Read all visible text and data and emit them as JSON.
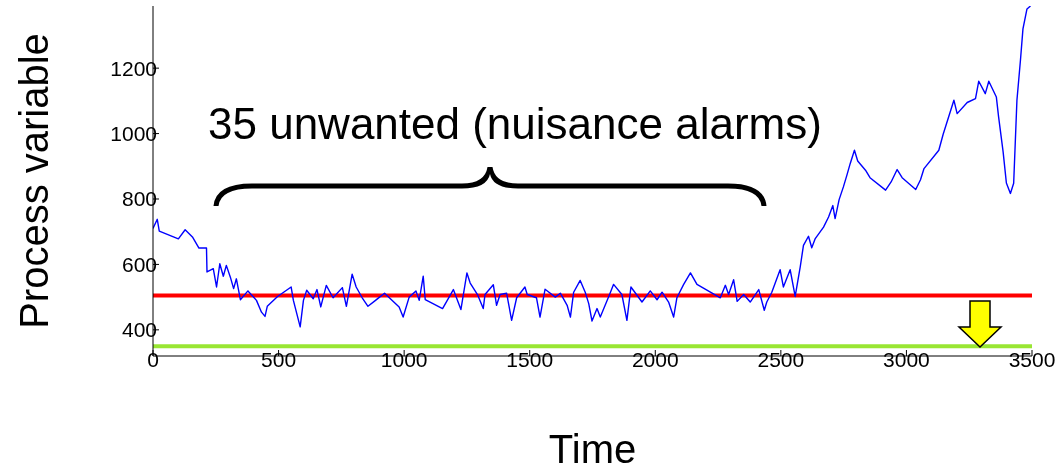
{
  "chart_data": {
    "type": "line",
    "xlabel": "Time",
    "ylabel": "Process variable",
    "xlim": [
      0,
      3500
    ],
    "ylim": [
      320,
      1390
    ],
    "xticks": [
      0,
      500,
      1000,
      1500,
      2000,
      2500,
      3000,
      3500
    ],
    "yticks": [
      400,
      600,
      800,
      1000,
      1200
    ],
    "grid": false,
    "legend": false,
    "marker": "none",
    "line_style": "solid",
    "x": [
      0,
      17,
      25,
      101,
      128,
      157,
      183,
      213,
      215,
      240,
      253,
      266,
      280,
      292,
      308,
      321,
      332,
      348,
      378,
      412,
      432,
      446,
      455,
      496,
      550,
      559,
      586,
      599,
      612,
      638,
      653,
      668,
      690,
      717,
      754,
      770,
      793,
      809,
      833,
      856,
      886,
      902,
      922,
      980,
      996,
      1020,
      1047,
      1060,
      1076,
      1084,
      1153,
      1196,
      1226,
      1250,
      1263,
      1292,
      1315,
      1322,
      1355,
      1368,
      1382,
      1408,
      1428,
      1448,
      1481,
      1490,
      1527,
      1541,
      1561,
      1602,
      1622,
      1649,
      1662,
      1675,
      1701,
      1721,
      1735,
      1748,
      1768,
      1781,
      1818,
      1834,
      1867,
      1887,
      1903,
      1947,
      1980,
      2007,
      2027,
      2053,
      2073,
      2086,
      2113,
      2140,
      2166,
      2259,
      2279,
      2292,
      2312,
      2326,
      2352,
      2378,
      2412,
      2434,
      2444,
      2464,
      2497,
      2510,
      2537,
      2557,
      2577,
      2590,
      2610,
      2623,
      2637,
      2670,
      2690,
      2707,
      2716,
      2732,
      2749,
      2763,
      2776,
      2793,
      2806,
      2837,
      2855,
      2917,
      2939,
      2963,
      2983,
      3037,
      3056,
      3070,
      3129,
      3146,
      3189,
      3202,
      3242,
      3275,
      3288,
      3314,
      3328,
      3358,
      3367,
      3385,
      3398,
      3414,
      3427,
      3440,
      3454,
      3464,
      3480,
      3494
    ],
    "series": [
      {
        "color": "#0000ff",
        "values": [
          710,
          738,
          702,
          678,
          706,
          684,
          650,
          650,
          577,
          587,
          531,
          602,
          564,
          597,
          561,
          526,
          556,
          492,
          519,
          490,
          454,
          441,
          472,
          502,
          531,
          490,
          409,
          490,
          521,
          495,
          523,
          470,
          536,
          498,
          529,
          472,
          570,
          531,
          498,
          472,
          490,
          500,
          512,
          470,
          439,
          500,
          519,
          490,
          564,
          492,
          465,
          523,
          462,
          574,
          543,
          508,
          465,
          508,
          538,
          475,
          508,
          512,
          429,
          498,
          531,
          508,
          498,
          439,
          524,
          500,
          512,
          475,
          439,
          515,
          551,
          515,
          480,
          427,
          465,
          439,
          508,
          539,
          508,
          429,
          531,
          485,
          519,
          492,
          515,
          485,
          439,
          498,
          539,
          574,
          539,
          498,
          536,
          508,
          553,
          487,
          508,
          485,
          523,
          460,
          485,
          515,
          584,
          531,
          584,
          502,
          592,
          658,
          686,
          651,
          679,
          714,
          745,
          780,
          740,
          798,
          837,
          873,
          908,
          949,
          916,
          888,
          865,
          827,
          852,
          890,
          865,
          829,
          859,
          893,
          949,
          997,
          1102,
          1061,
          1095,
          1107,
          1160,
          1122,
          1160,
          1112,
          1051,
          944,
          849,
          817,
          848,
          1102,
          1224,
          1320,
          1381,
          1390
        ]
      }
    ],
    "ref_lines": [
      {
        "axis": "y",
        "value": 505,
        "color": "#ff0000",
        "line_style": "solid"
      },
      {
        "axis": "y",
        "value": 350,
        "color": "#99e633",
        "line_style": "solid"
      }
    ],
    "annotations": [
      "35 unwanted (nuisance alarms)"
    ]
  }
}
